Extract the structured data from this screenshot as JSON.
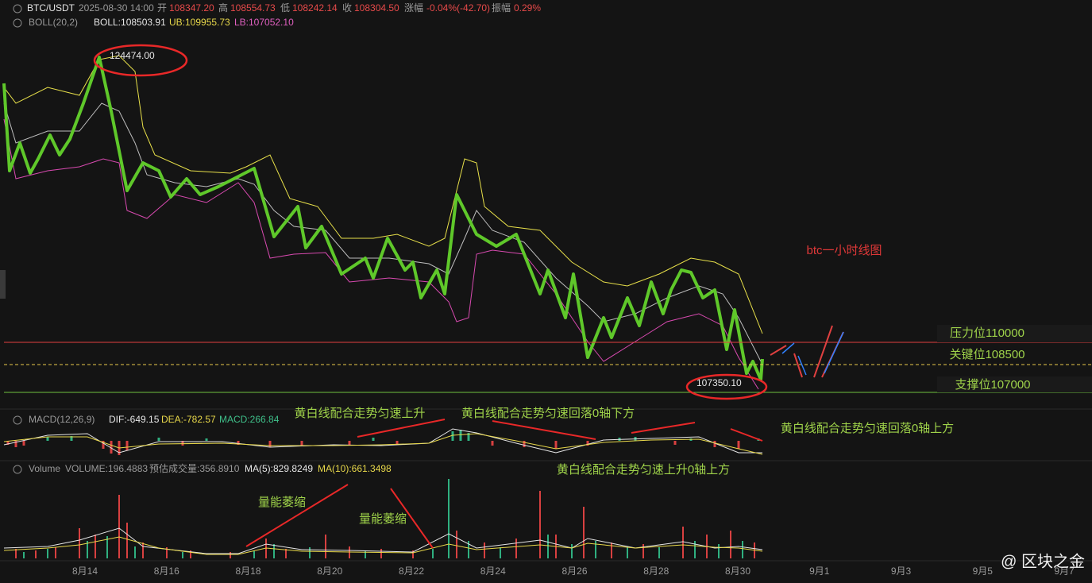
{
  "header": {
    "symbol": "BTC/USDT",
    "datetime": "2025-08-30 14:00",
    "open_label": "开",
    "open": "108347.20",
    "high_label": "高",
    "high": "108554.73",
    "low_label": "低",
    "low": "108242.14",
    "close_label": "收",
    "close": "108304.50",
    "change_label": "涨幅",
    "change": "-0.04%(-42.70)",
    "amplitude_label": "振幅",
    "amplitude": "0.29%"
  },
  "boll": {
    "name": "BOLL(20,2)",
    "mid": "BOLL:108503.91",
    "ub": "UB:109955.73",
    "lb": "LB:107052.10"
  },
  "macd": {
    "name": "MACD(12,26,9)",
    "dif": "DIF:-649.15",
    "dea": "DEA:-782.57",
    "macd": "MACD:266.84"
  },
  "volume": {
    "name": "Volume",
    "volume": "VOLUME:196.4883",
    "estimate": "预估成交量:356.8910",
    "ma5": "MA(5):829.8249",
    "ma10": "MA(10):661.3498"
  },
  "price_labels": {
    "high": "124474.00",
    "low": "107350.10"
  },
  "annotations": {
    "title": "btc一小时线图",
    "resistance": "压力位110000",
    "key": "关键位108500",
    "support": "支撑位107000",
    "macd_1": "黄白线配合走势匀速上升",
    "macd_2": "黄白线配合走势匀速回落0轴下方",
    "macd_3": "黄白线配合走势匀速回落0轴上方",
    "macd_4": "黄白线配合走势匀速上升0轴上方",
    "vol_1": "量能萎缩",
    "vol_2": "量能萎缩"
  },
  "x_axis": [
    "8月14",
    "8月16",
    "8月18",
    "8月20",
    "8月22",
    "8月24",
    "8月26",
    "8月28",
    "8月30",
    "9月1",
    "9月3",
    "9月5",
    "9月7"
  ],
  "watermark": "@ 区块之金"
}
